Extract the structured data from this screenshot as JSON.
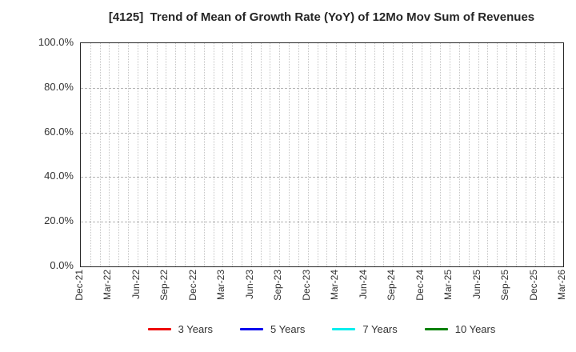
{
  "chart_data": {
    "type": "line",
    "title": "[4125]  Trend of Mean of Growth Rate (YoY) of 12Mo Mov Sum of Revenues",
    "xlabel": "",
    "ylabel": "",
    "ylim": [
      0,
      100
    ],
    "y_ticks": [
      {
        "value": 0,
        "label": "0.0%"
      },
      {
        "value": 20,
        "label": "20.0%"
      },
      {
        "value": 40,
        "label": "40.0%"
      },
      {
        "value": 60,
        "label": "60.0%"
      },
      {
        "value": 80,
        "label": "80.0%"
      },
      {
        "value": 100,
        "label": "100.0%"
      }
    ],
    "x_tick_labels": [
      "Dec-21",
      "Mar-22",
      "Jun-22",
      "Sep-22",
      "Dec-22",
      "Mar-23",
      "Jun-23",
      "Sep-23",
      "Dec-23",
      "Mar-24",
      "Jun-24",
      "Sep-24",
      "Dec-24",
      "Mar-25",
      "Jun-25",
      "Sep-25",
      "Dec-25",
      "Mar-26"
    ],
    "x_months_per_tick": 3,
    "x_total_months": 51,
    "grid": {
      "vertical": "dotted, monthly",
      "horizontal": "dashed, every 20%"
    },
    "legend_position": "bottom-center",
    "series": [
      {
        "name": "3 Years",
        "color": "#ee0000",
        "values": []
      },
      {
        "name": "5 Years",
        "color": "#0000ee",
        "values": []
      },
      {
        "name": "7 Years",
        "color": "#00eeee",
        "values": []
      },
      {
        "name": "10 Years",
        "color": "#008000",
        "values": []
      }
    ]
  },
  "colors": {
    "background": "#ffffff",
    "plot_border": "#262626",
    "title_text": "#262626",
    "axis_text": "#333333",
    "grid_vertical": "#c6c6c6",
    "grid_horizontal": "#b5b5b5"
  }
}
